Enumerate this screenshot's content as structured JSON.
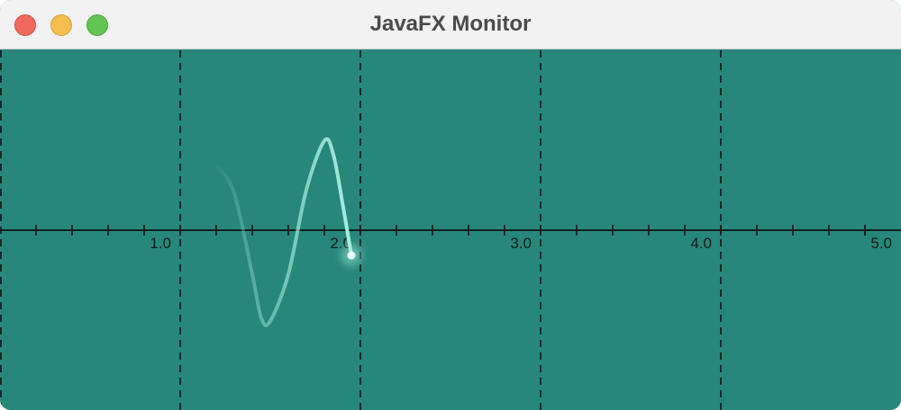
{
  "window": {
    "title": "JavaFX Monitor",
    "buttons": [
      "close",
      "minimize",
      "zoom"
    ]
  },
  "colors": {
    "background": "#27877a",
    "grid": "#0c1311",
    "axis": "#0c1311",
    "trace": "#a8f0e0",
    "titlebar": "#f3f2f2"
  },
  "chart_data": {
    "type": "line",
    "title": "",
    "xlabel": "",
    "ylabel": "",
    "xlim": [
      0,
      5
    ],
    "ylim": [
      -1,
      1
    ],
    "grid": true,
    "grid_style": "dashed",
    "tick_labels": [
      "1.0",
      "2.0",
      "3.0",
      "4.0",
      "5.0"
    ],
    "series": [
      {
        "x": [
          1.21,
          1.3,
          1.4,
          1.45,
          1.5,
          1.6,
          1.7,
          1.8,
          1.85,
          1.9,
          1.95
        ],
        "y": [
          0.5,
          0.29,
          -0.35,
          -0.7,
          -0.72,
          -0.35,
          0.32,
          0.71,
          0.6,
          0.22,
          -0.2
        ]
      }
    ],
    "trace_head": {
      "x": 1.95,
      "y": -0.2
    }
  }
}
